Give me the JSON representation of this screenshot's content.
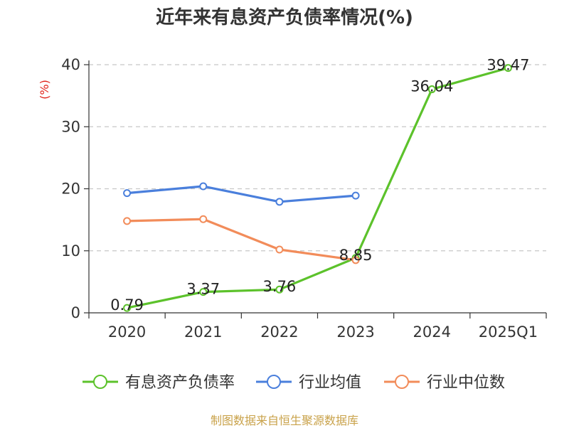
{
  "title": "近年来有息资产负债率情况(%)",
  "source_note": "制图数据来自恒生聚源数据库",
  "chart_data": {
    "type": "line",
    "title": "近年来有息资产负债率情况(%)",
    "ylabel": "(%)",
    "ylabel_color": "#e0241b",
    "categories": [
      "2020",
      "2021",
      "2022",
      "2023",
      "2024",
      "2025Q1"
    ],
    "ylim": [
      0,
      40
    ],
    "yticks": [
      0,
      10,
      20,
      30,
      40
    ],
    "grid": true,
    "legend_position": "bottom",
    "series": [
      {
        "name": "有息资产负债率",
        "color": "#5cc22b",
        "values": [
          0.79,
          3.37,
          3.76,
          8.85,
          36.04,
          39.47
        ],
        "labels": [
          "0.79",
          "3.37",
          "3.76",
          "8.85",
          "36.04",
          "39.47"
        ]
      },
      {
        "name": "行业均值",
        "color": "#4a7fdc",
        "values": [
          19.3,
          20.4,
          17.9,
          18.9,
          null,
          null
        ]
      },
      {
        "name": "行业中位数",
        "color": "#f28c5a",
        "values": [
          14.8,
          15.1,
          10.2,
          8.5,
          null,
          null
        ]
      }
    ]
  }
}
